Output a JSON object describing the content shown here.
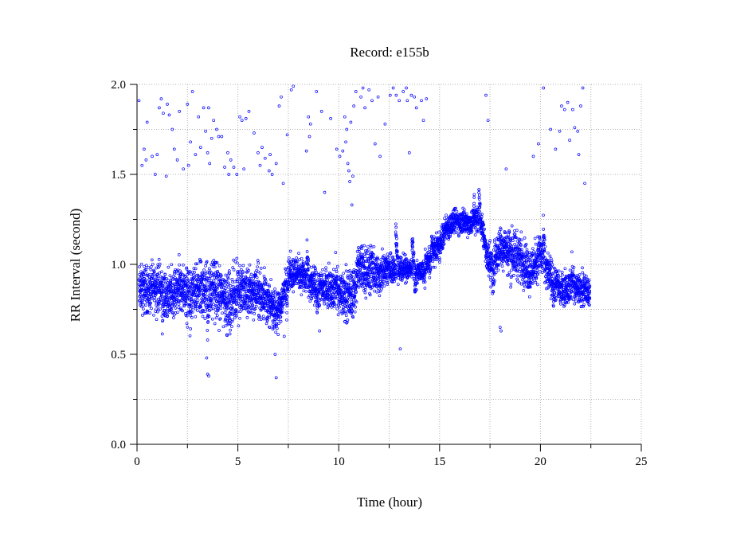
{
  "chart_data": {
    "type": "scatter",
    "title": "Record:  e155b",
    "xlabel": "Time (hour)",
    "ylabel": "RR Interval (second)",
    "xlim": [
      0,
      25
    ],
    "ylim": [
      0.0,
      2.0
    ],
    "xticks": [
      0,
      5,
      10,
      15,
      20,
      25
    ],
    "xtick_labels": [
      "0",
      "5",
      "10",
      "15",
      "20",
      "25"
    ],
    "yticks": [
      0.0,
      0.5,
      1.0,
      1.5,
      2.0
    ],
    "ytick_labels": [
      "0.0",
      "0.5",
      "1.0",
      "1.5",
      "2.0"
    ],
    "grid": true,
    "series_color": "#0000ff",
    "baseline": [
      [
        0.1,
        0.86
      ],
      [
        0.5,
        0.86
      ],
      [
        1.0,
        0.88
      ],
      [
        1.5,
        0.82
      ],
      [
        2.0,
        0.86
      ],
      [
        2.5,
        0.84
      ],
      [
        3.0,
        0.85
      ],
      [
        3.5,
        0.86
      ],
      [
        4.0,
        0.84
      ],
      [
        4.5,
        0.82
      ],
      [
        5.0,
        0.84
      ],
      [
        5.5,
        0.84
      ],
      [
        6.0,
        0.86
      ],
      [
        6.5,
        0.78
      ],
      [
        7.0,
        0.74
      ],
      [
        7.2,
        0.8
      ],
      [
        7.5,
        0.95
      ],
      [
        8.0,
        0.96
      ],
      [
        8.5,
        0.9
      ],
      [
        9.0,
        0.86
      ],
      [
        9.5,
        0.88
      ],
      [
        10.0,
        0.84
      ],
      [
        10.5,
        0.82
      ],
      [
        10.8,
        0.86
      ],
      [
        11.0,
        1.0
      ],
      [
        11.5,
        0.96
      ],
      [
        12.0,
        0.94
      ],
      [
        12.5,
        0.98
      ],
      [
        13.0,
        0.97
      ],
      [
        13.5,
        0.98
      ],
      [
        14.0,
        0.96
      ],
      [
        14.3,
        0.95
      ],
      [
        14.5,
        1.05
      ],
      [
        15.0,
        1.1
      ],
      [
        15.3,
        1.2
      ],
      [
        15.8,
        1.24
      ],
      [
        16.5,
        1.23
      ],
      [
        17.0,
        1.26
      ],
      [
        17.2,
        1.15
      ],
      [
        17.5,
        0.96
      ],
      [
        18.0,
        1.1
      ],
      [
        18.5,
        1.08
      ],
      [
        19.0,
        1.04
      ],
      [
        19.5,
        0.96
      ],
      [
        20.0,
        1.06
      ],
      [
        20.5,
        0.92
      ],
      [
        21.0,
        0.86
      ],
      [
        21.5,
        0.88
      ],
      [
        22.0,
        0.86
      ],
      [
        22.45,
        0.85
      ]
    ],
    "spread": [
      [
        0.1,
        0.14
      ],
      [
        2.0,
        0.15
      ],
      [
        4.0,
        0.17
      ],
      [
        6.0,
        0.15
      ],
      [
        7.0,
        0.1
      ],
      [
        8.0,
        0.1
      ],
      [
        10.0,
        0.12
      ],
      [
        11.0,
        0.16
      ],
      [
        12.0,
        0.12
      ],
      [
        13.0,
        0.08
      ],
      [
        14.0,
        0.06
      ],
      [
        15.0,
        0.08
      ],
      [
        16.0,
        0.07
      ],
      [
        17.0,
        0.08
      ],
      [
        18.0,
        0.13
      ],
      [
        19.0,
        0.14
      ],
      [
        20.0,
        0.13
      ],
      [
        21.0,
        0.1
      ],
      [
        22.45,
        0.08
      ]
    ],
    "outliers": [
      [
        0.1,
        1.91
      ],
      [
        0.25,
        1.55
      ],
      [
        0.35,
        1.64
      ],
      [
        0.45,
        1.58
      ],
      [
        0.5,
        1.79
      ],
      [
        0.75,
        1.6
      ],
      [
        0.9,
        1.5
      ],
      [
        1.0,
        1.61
      ],
      [
        1.1,
        1.87
      ],
      [
        1.2,
        1.92
      ],
      [
        1.3,
        1.84
      ],
      [
        1.45,
        1.49
      ],
      [
        1.5,
        1.89
      ],
      [
        1.6,
        1.83
      ],
      [
        1.75,
        1.75
      ],
      [
        1.85,
        1.64
      ],
      [
        2.0,
        1.58
      ],
      [
        2.1,
        1.85
      ],
      [
        2.3,
        1.53
      ],
      [
        2.5,
        1.89
      ],
      [
        2.55,
        1.55
      ],
      [
        2.65,
        1.68
      ],
      [
        2.75,
        1.96
      ],
      [
        2.9,
        1.61
      ],
      [
        3.05,
        1.82
      ],
      [
        3.15,
        1.65
      ],
      [
        3.3,
        1.87
      ],
      [
        3.4,
        1.74
      ],
      [
        3.5,
        1.62
      ],
      [
        3.55,
        1.87
      ],
      [
        3.6,
        1.56
      ],
      [
        3.7,
        1.7
      ],
      [
        3.8,
        1.8
      ],
      [
        3.95,
        1.75
      ],
      [
        4.05,
        1.71
      ],
      [
        4.2,
        1.71
      ],
      [
        4.35,
        1.54
      ],
      [
        4.5,
        1.62
      ],
      [
        4.55,
        1.5
      ],
      [
        4.65,
        1.58
      ],
      [
        4.8,
        1.54
      ],
      [
        4.95,
        1.5
      ],
      [
        5.1,
        1.82
      ],
      [
        5.2,
        1.8
      ],
      [
        5.3,
        1.53
      ],
      [
        5.4,
        1.81
      ],
      [
        5.55,
        1.85
      ],
      [
        5.8,
        1.73
      ],
      [
        6.0,
        1.62
      ],
      [
        6.1,
        1.55
      ],
      [
        6.2,
        1.65
      ],
      [
        6.35,
        1.59
      ],
      [
        6.55,
        1.52
      ],
      [
        6.6,
        1.61
      ],
      [
        6.7,
        1.5
      ],
      [
        6.9,
        1.56
      ],
      [
        7.05,
        1.88
      ],
      [
        7.15,
        1.93
      ],
      [
        7.25,
        1.45
      ],
      [
        7.45,
        1.72
      ],
      [
        7.65,
        1.97
      ],
      [
        7.75,
        1.99
      ],
      [
        8.4,
        1.63
      ],
      [
        8.5,
        1.82
      ],
      [
        8.55,
        1.71
      ],
      [
        8.6,
        1.78
      ],
      [
        8.9,
        1.96
      ],
      [
        9.15,
        1.85
      ],
      [
        9.3,
        1.4
      ],
      [
        9.6,
        1.81
      ],
      [
        9.9,
        1.64
      ],
      [
        10.05,
        1.6
      ],
      [
        10.2,
        1.63
      ],
      [
        10.3,
        1.82
      ],
      [
        10.35,
        1.68
      ],
      [
        10.4,
        1.75
      ],
      [
        10.45,
        1.56
      ],
      [
        10.5,
        1.52
      ],
      [
        10.55,
        1.46
      ],
      [
        10.6,
        1.79
      ],
      [
        10.65,
        1.33
      ],
      [
        10.7,
        1.49
      ],
      [
        10.75,
        1.88
      ],
      [
        10.85,
        1.96
      ],
      [
        11.1,
        1.93
      ],
      [
        11.2,
        1.98
      ],
      [
        11.3,
        1.87
      ],
      [
        11.5,
        1.97
      ],
      [
        11.65,
        1.91
      ],
      [
        11.8,
        1.67
      ],
      [
        11.95,
        1.93
      ],
      [
        12.05,
        1.6
      ],
      [
        12.3,
        1.78
      ],
      [
        12.55,
        1.94
      ],
      [
        12.7,
        1.98
      ],
      [
        12.85,
        1.94
      ],
      [
        13.0,
        1.91
      ],
      [
        13.2,
        1.96
      ],
      [
        13.35,
        1.98
      ],
      [
        13.4,
        1.91
      ],
      [
        13.5,
        1.62
      ],
      [
        13.6,
        1.94
      ],
      [
        13.75,
        1.93
      ],
      [
        13.85,
        1.87
      ],
      [
        14.1,
        1.91
      ],
      [
        14.2,
        1.8
      ],
      [
        14.35,
        1.92
      ],
      [
        17.3,
        1.94
      ],
      [
        17.4,
        1.8
      ],
      [
        18.3,
        1.53
      ],
      [
        19.65,
        1.6
      ],
      [
        19.9,
        1.67
      ],
      [
        20.15,
        1.98
      ],
      [
        20.5,
        1.75
      ],
      [
        20.75,
        1.64
      ],
      [
        20.95,
        1.74
      ],
      [
        21.05,
        1.88
      ],
      [
        21.2,
        1.86
      ],
      [
        21.35,
        1.9
      ],
      [
        21.45,
        1.69
      ],
      [
        21.6,
        1.86
      ],
      [
        21.7,
        1.76
      ],
      [
        21.85,
        1.74
      ],
      [
        21.9,
        1.61
      ],
      [
        22.0,
        1.88
      ],
      [
        22.1,
        1.98
      ],
      [
        22.2,
        1.45
      ],
      [
        3.45,
        0.48
      ],
      [
        3.5,
        0.39
      ],
      [
        3.55,
        0.38
      ],
      [
        6.85,
        0.5
      ],
      [
        6.9,
        0.37
      ],
      [
        7.0,
        0.61
      ],
      [
        7.3,
        0.6
      ],
      [
        9.05,
        0.63
      ],
      [
        13.05,
        0.53
      ],
      [
        18.05,
        0.63
      ],
      [
        18.0,
        0.65
      ]
    ]
  }
}
